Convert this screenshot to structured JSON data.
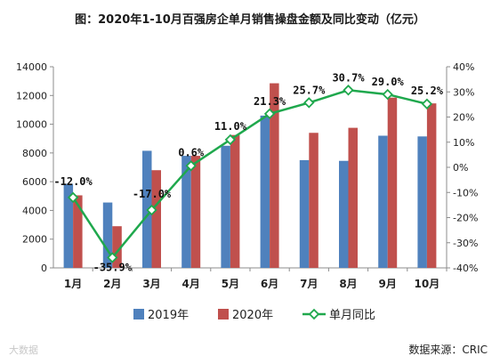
{
  "title": "图：2020年1-10月百强房企单月销售操盘金额及同比变动（亿元）",
  "source": "数据来源：CRIC",
  "watermark": "大数据",
  "chart_data": {
    "type": "bar",
    "categories": [
      "1月",
      "2月",
      "3月",
      "4月",
      "5月",
      "6月",
      "7月",
      "8月",
      "9月",
      "10月"
    ],
    "series": [
      {
        "name": "2019年",
        "type": "bar",
        "axis": "left",
        "color": "#4f81bd",
        "values": [
          5850,
          4550,
          8150,
          7800,
          8500,
          10600,
          7500,
          7450,
          9200,
          9150
        ]
      },
      {
        "name": "2020年",
        "type": "bar",
        "axis": "left",
        "color": "#c0504d",
        "values": [
          5050,
          2900,
          6800,
          7800,
          9250,
          12850,
          9400,
          9750,
          11850,
          11450
        ]
      },
      {
        "name": "单月同比",
        "type": "line",
        "axis": "right",
        "color": "#1fa84d",
        "values": [
          -12.0,
          -35.9,
          -17.0,
          0.6,
          11.0,
          21.3,
          25.7,
          30.7,
          29.0,
          25.2
        ],
        "labels": [
          "-12.0%",
          "-35.9%",
          "-17.0%",
          "0.6%",
          "11.0%",
          "21.3%",
          "25.7%",
          "30.7%",
          "29.0%",
          "25.2%"
        ]
      }
    ],
    "y_left": {
      "min": 0,
      "max": 14000,
      "ticks": [
        0,
        2000,
        4000,
        6000,
        8000,
        10000,
        12000,
        14000
      ]
    },
    "y_right": {
      "min": -40,
      "max": 40,
      "ticks": [
        "-40%",
        "-30%",
        "-20%",
        "-10%",
        "0%",
        "10%",
        "20%",
        "30%",
        "40%"
      ]
    },
    "legend": {
      "position": "bottom",
      "items": [
        "2019年",
        "2020年",
        "单月同比"
      ]
    },
    "grid": false
  }
}
